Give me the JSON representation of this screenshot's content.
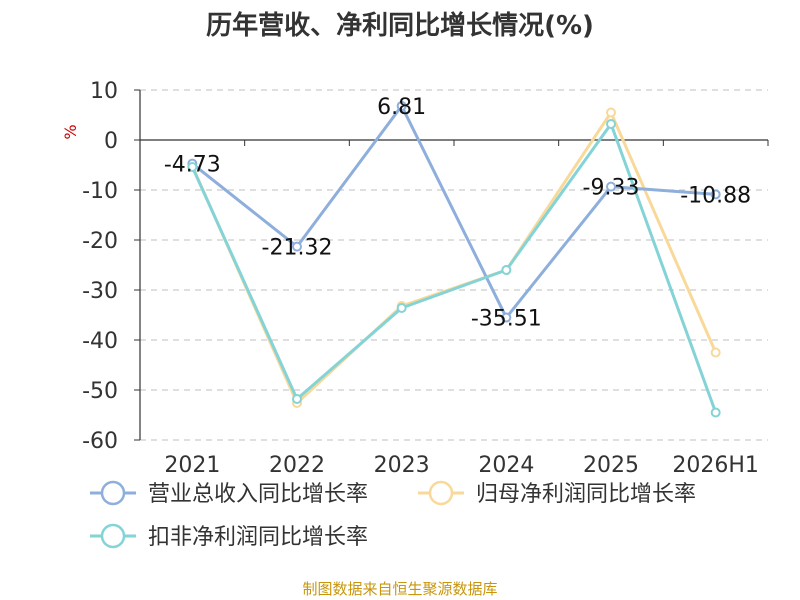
{
  "chart_data": {
    "type": "line",
    "title": "历年营收、净利同比增长情况(%)",
    "ylabel": "%",
    "xlabel": "",
    "categories": [
      "2021",
      "2022",
      "2023",
      "2024",
      "2025",
      "2026H1"
    ],
    "ylim": [
      -60,
      10
    ],
    "yticks": [
      10,
      0,
      -10,
      -20,
      -30,
      -40,
      -50,
      -60
    ],
    "grid": true,
    "legend_position": "bottom-left",
    "series": [
      {
        "name": "营业总收入同比增长率",
        "color": "#8eaedb",
        "values": [
          -4.73,
          -21.32,
          6.81,
          -35.51,
          -9.33,
          -10.88
        ],
        "labels": [
          "-4.73",
          "-21.32",
          "6.81",
          "-35.51",
          "-9.33",
          "-10.88"
        ]
      },
      {
        "name": "归母净利润同比增长率",
        "color": "#f9d99a",
        "values": [
          -5.2,
          -52.6,
          -33.2,
          -26.0,
          5.5,
          -42.5
        ],
        "labels": []
      },
      {
        "name": "扣非净利润同比增长率",
        "color": "#84d3d6",
        "values": [
          -5.4,
          -51.8,
          -33.6,
          -26.0,
          3.2,
          -54.5
        ],
        "labels": []
      }
    ]
  },
  "source_text": "制图数据来自恒生聚源数据库"
}
